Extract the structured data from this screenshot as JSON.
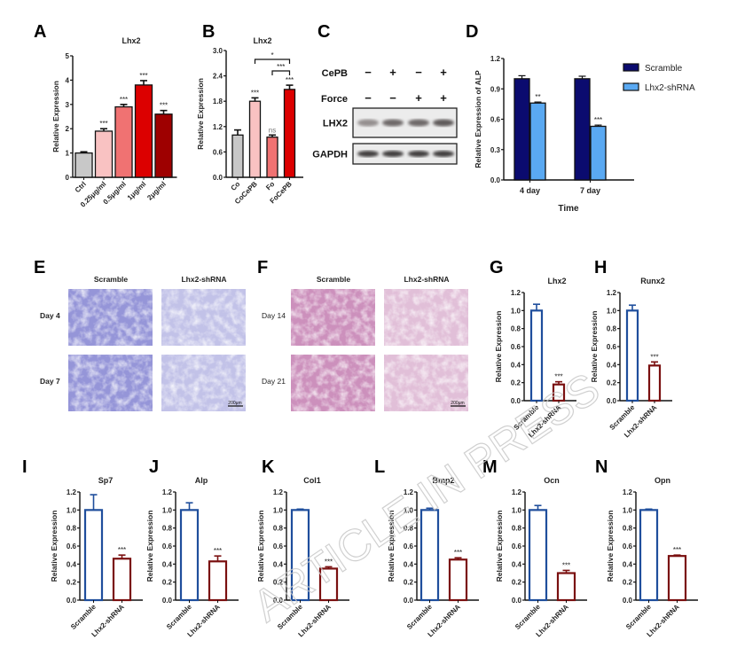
{
  "panel_letters": [
    "A",
    "B",
    "C",
    "D",
    "E",
    "F",
    "G",
    "H",
    "I",
    "J",
    "K",
    "L",
    "M",
    "N"
  ],
  "chart_data": [
    {
      "panel": "A",
      "type": "bar",
      "title": "Lhx2",
      "ylabel": "Relative Expression",
      "categories": [
        "Ctrl",
        "0.25μg/ml",
        "0.5μg/ml",
        "1μg/ml",
        "2μg/ml"
      ],
      "values": [
        1.0,
        1.9,
        2.9,
        3.8,
        2.6
      ],
      "errors": [
        0.05,
        0.1,
        0.1,
        0.18,
        0.15
      ],
      "significance": [
        "",
        "***",
        "***",
        "***",
        "***"
      ],
      "ylim": [
        0,
        5
      ],
      "yticks": [
        "0",
        "1",
        "2",
        "3",
        "4",
        "5"
      ],
      "colors": [
        "#c8c8c8",
        "#f9c2c2",
        "#f07272",
        "#dc0000",
        "#9e0000"
      ],
      "style": "filled"
    },
    {
      "panel": "B",
      "type": "bar",
      "title": "Lhx2",
      "ylabel": "Relative Expression",
      "categories": [
        "Co",
        "CoCePB",
        "Fo",
        "FoCePB"
      ],
      "values": [
        1.0,
        1.8,
        0.95,
        2.08
      ],
      "errors": [
        0.12,
        0.08,
        0.05,
        0.1
      ],
      "significance": [
        "",
        "***",
        "ns",
        "***"
      ],
      "comparisons": [
        {
          "from": 1,
          "to": 3,
          "label": "*"
        },
        {
          "from": 2,
          "to": 3,
          "label": "***"
        }
      ],
      "ylim": [
        0,
        3
      ],
      "yticks": [
        "0.0",
        "0.6",
        "1.2",
        "1.8",
        "2.4",
        "3.0"
      ],
      "colors": [
        "#c8c8c8",
        "#f9c2c2",
        "#f07272",
        "#dc0000"
      ],
      "style": "filled"
    },
    {
      "panel": "D",
      "type": "bar",
      "title": "",
      "ylabel": "Relative Expression of ALP",
      "xlabel": "Time",
      "categories": [
        "4 day",
        "7 day"
      ],
      "series": [
        {
          "name": "Scramble",
          "values": [
            1.0,
            1.0
          ],
          "errors": [
            0.03,
            0.025
          ],
          "significance": [
            "",
            ""
          ],
          "color": "#0b0b6f"
        },
        {
          "name": "Lhx2-shRNA",
          "values": [
            0.76,
            0.53
          ],
          "errors": [
            0.01,
            0.012
          ],
          "significance": [
            "**",
            "***"
          ],
          "color": "#5aa9f2"
        }
      ],
      "ylim": [
        0,
        1.2
      ],
      "yticks": [
        "0.0",
        "0.3",
        "0.6",
        "0.9",
        "1.2"
      ],
      "legend": "top-right",
      "style": "filled"
    },
    {
      "panel": "G",
      "type": "bar",
      "title": "Lhx2",
      "ylabel": "Relative Expression",
      "categories": [
        "Scramble",
        "Lhx2-shRNA"
      ],
      "values": [
        1.0,
        0.18
      ],
      "errors": [
        0.07,
        0.03
      ],
      "significance": [
        "",
        "***"
      ],
      "ylim": [
        0,
        1.2
      ],
      "yticks": [
        "0.0",
        "0.2",
        "0.4",
        "0.6",
        "0.8",
        "1.0",
        "1.2"
      ],
      "colors": [
        "#1f4e9c",
        "#7a1010"
      ],
      "style": "outline"
    },
    {
      "panel": "H",
      "type": "bar",
      "title": "Runx2",
      "ylabel": "Relative Expression",
      "categories": [
        "Scramble",
        "Lhx2-shRNA"
      ],
      "values": [
        1.0,
        0.39
      ],
      "errors": [
        0.06,
        0.04
      ],
      "significance": [
        "",
        "***"
      ],
      "ylim": [
        0,
        1.2
      ],
      "yticks": [
        "0.0",
        "0.2",
        "0.4",
        "0.6",
        "0.8",
        "1.0",
        "1.2"
      ],
      "colors": [
        "#1f4e9c",
        "#7a1010"
      ],
      "style": "outline"
    },
    {
      "panel": "I",
      "type": "bar",
      "title": "Sp7",
      "ylabel": "Relative Expression",
      "categories": [
        "Scramble",
        "Lhx2-shRNA"
      ],
      "values": [
        1.0,
        0.46
      ],
      "errors": [
        0.17,
        0.04
      ],
      "significance": [
        "",
        "***"
      ],
      "ylim": [
        0,
        1.2
      ],
      "yticks": [
        "0.0",
        "0.2",
        "0.4",
        "0.6",
        "0.8",
        "1.0",
        "1.2"
      ],
      "colors": [
        "#1f4e9c",
        "#7a1010"
      ],
      "style": "outline"
    },
    {
      "panel": "J",
      "type": "bar",
      "title": "Alp",
      "ylabel": "Relative Expression",
      "categories": [
        "Scramble",
        "Lhx2-shRNA"
      ],
      "values": [
        1.0,
        0.43
      ],
      "errors": [
        0.08,
        0.06
      ],
      "significance": [
        "",
        "***"
      ],
      "ylim": [
        0,
        1.2
      ],
      "yticks": [
        "0.0",
        "0.2",
        "0.4",
        "0.6",
        "0.8",
        "1.0",
        "1.2"
      ],
      "colors": [
        "#1f4e9c",
        "#7a1010"
      ],
      "style": "outline"
    },
    {
      "panel": "K",
      "type": "bar",
      "title": "Col1",
      "ylabel": "Relative Expression",
      "categories": [
        "Scramble",
        "Lhx2-shRNA"
      ],
      "values": [
        1.0,
        0.35
      ],
      "errors": [
        0.01,
        0.02
      ],
      "significance": [
        "",
        "***"
      ],
      "ylim": [
        0,
        1.2
      ],
      "yticks": [
        "0.0",
        "0.2",
        "0.4",
        "0.6",
        "0.8",
        "1.0",
        "1.2"
      ],
      "colors": [
        "#1f4e9c",
        "#7a1010"
      ],
      "style": "outline"
    },
    {
      "panel": "L",
      "type": "bar",
      "title": "Bmp2",
      "ylabel": "Relative Expression",
      "categories": [
        "Scramble",
        "Lhx2-shRNA"
      ],
      "values": [
        1.0,
        0.45
      ],
      "errors": [
        0.02,
        0.02
      ],
      "significance": [
        "",
        "***"
      ],
      "ylim": [
        0,
        1.2
      ],
      "yticks": [
        "0.0",
        "0.2",
        "0.4",
        "0.6",
        "0.8",
        "1.0",
        "1.2"
      ],
      "colors": [
        "#1f4e9c",
        "#7a1010"
      ],
      "style": "outline"
    },
    {
      "panel": "M",
      "type": "bar",
      "title": "Ocn",
      "ylabel": "Relative Expression",
      "categories": [
        "Scramble",
        "Lhx2-shRNA"
      ],
      "values": [
        1.0,
        0.3
      ],
      "errors": [
        0.05,
        0.03
      ],
      "significance": [
        "",
        "***"
      ],
      "ylim": [
        0,
        1.2
      ],
      "yticks": [
        "0.0",
        "0.2",
        "0.4",
        "0.6",
        "0.8",
        "1.0",
        "1.2"
      ],
      "colors": [
        "#1f4e9c",
        "#7a1010"
      ],
      "style": "outline"
    },
    {
      "panel": "N",
      "type": "bar",
      "title": "Opn",
      "ylabel": "Relative Expression",
      "categories": [
        "Scramble",
        "Lhx2-shRNA"
      ],
      "values": [
        1.0,
        0.49
      ],
      "errors": [
        0.01,
        0.01
      ],
      "significance": [
        "",
        "***"
      ],
      "ylim": [
        0,
        1.2
      ],
      "yticks": [
        "0.0",
        "0.2",
        "0.4",
        "0.6",
        "0.8",
        "1.0",
        "1.2"
      ],
      "colors": [
        "#1f4e9c",
        "#7a1010"
      ],
      "style": "outline"
    }
  ],
  "western_blot": {
    "panel": "C",
    "conditions": [
      {
        "label": "CePB",
        "signs": [
          "−",
          "+",
          "−",
          "+"
        ]
      },
      {
        "label": "Force",
        "signs": [
          "−",
          "−",
          "+",
          "+"
        ]
      }
    ],
    "bands": [
      {
        "label": "LHX2",
        "intensity": [
          0.35,
          0.6,
          0.6,
          0.7
        ]
      },
      {
        "label": "GAPDH",
        "intensity": [
          0.9,
          0.9,
          0.9,
          0.9
        ]
      }
    ]
  },
  "micrographs": [
    {
      "panel": "E",
      "columns": [
        "Scramble",
        "Lhx2-shRNA"
      ],
      "rows": [
        "Day 4",
        "Day 7"
      ],
      "scale_bar": "200μm",
      "stain": "#8f8fd6"
    },
    {
      "panel": "F",
      "columns": [
        "Scramble",
        "Lhx2-shRNA"
      ],
      "rows": [
        "Day 14",
        "Day 21"
      ],
      "scale_bar": "200μm",
      "stain": "#c98ab8"
    }
  ],
  "watermark": "ARTICLE IN PRESS"
}
